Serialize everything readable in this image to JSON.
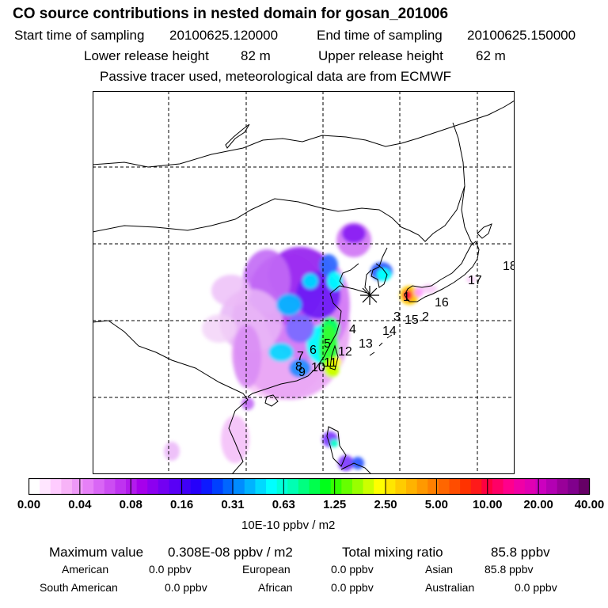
{
  "header": {
    "title": "CO  source contributions in nested domain for gosan_201006",
    "start_label": "Start time of sampling",
    "start_value": "20100625.120000",
    "end_label": "End time of sampling",
    "end_value": "20100625.150000",
    "lower_label": "Lower release height",
    "lower_value": "82 m",
    "upper_label": "Upper release height",
    "upper_value": "62 m",
    "tracer_note": "Passive tracer used, meteorological data are from ECMWF"
  },
  "map": {
    "region_labels": [
      "1",
      "2",
      "3",
      "4",
      "5",
      "6",
      "7",
      "8",
      "9",
      "10",
      "11",
      "12",
      "13",
      "14",
      "15",
      "16",
      "17",
      "18"
    ],
    "receptor": "Gosan",
    "colors": {
      "land_outline": "#000000",
      "grid": "#000000"
    }
  },
  "colorbar": {
    "tick_labels": [
      "0.00",
      "0.04",
      "0.08",
      "0.16",
      "0.31",
      "0.63",
      "1.25",
      "2.50",
      "5.00",
      "10.00",
      "20.00",
      "40.00"
    ],
    "colors": [
      "#ffffff",
      "#ffe6ff",
      "#ffccff",
      "#f7b3f7",
      "#ee99f7",
      "#e680f7",
      "#d966f5",
      "#cc4df2",
      "#bf33f0",
      "#b31aed",
      "#a600eb",
      "#8c00f0",
      "#7300f2",
      "#5900f5",
      "#4000f7",
      "#2600fa",
      "#0d1aff",
      "#0040ff",
      "#0066ff",
      "#008cff",
      "#00b3ff",
      "#00d9ff",
      "#00ffff",
      "#00ffd9",
      "#00ffb3",
      "#00ff80",
      "#00ff4d",
      "#00ff1a",
      "#33ff00",
      "#66ff00",
      "#99ff00",
      "#ccff00",
      "#ffff00",
      "#ffe600",
      "#ffcc00",
      "#ffb300",
      "#ff9900",
      "#ff8000",
      "#ff6600",
      "#ff4d00",
      "#ff3300",
      "#ff1a1a",
      "#ff0040",
      "#ff0066",
      "#ff008c",
      "#f000a6",
      "#e000b3",
      "#cc00bf",
      "#b300b3",
      "#990099",
      "#80008c",
      "#660066"
    ],
    "unit": "10E-10 ppbv / m2"
  },
  "summary": {
    "max_label": "Maximum value",
    "max_value": "0.308E-08 ppbv / m2",
    "total_label": "Total mixing ratio",
    "total_value": "85.8 ppbv",
    "american_label": "American",
    "american_value": "0.0 ppbv",
    "european_label": "European",
    "european_value": "0.0 ppbv",
    "asian_label": "Asian",
    "asian_value": "85.8 ppbv",
    "southamerican_label": "South American",
    "southamerican_value": "0.0 ppbv",
    "african_label": "African",
    "african_value": "0.0 ppbv",
    "australian_label": "Australian",
    "australian_value": "0.0 ppbv"
  }
}
